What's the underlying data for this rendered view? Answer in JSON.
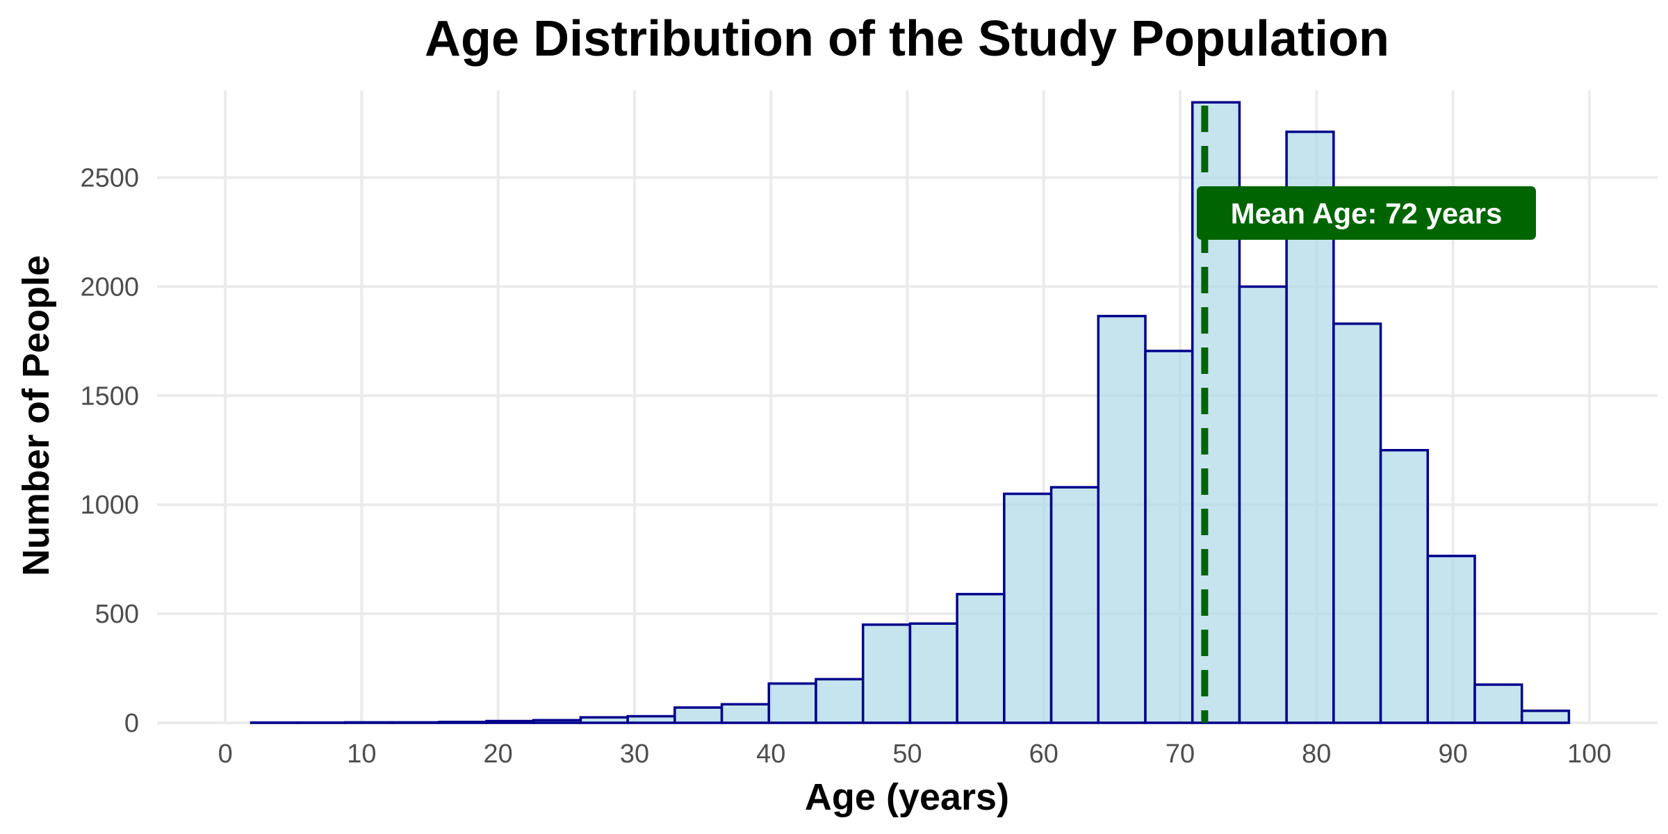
{
  "chart_data": {
    "type": "bar",
    "subtype": "histogram",
    "title": "Age Distribution of the Study Population",
    "xlabel": "Age (years)",
    "ylabel": "Number of People",
    "xlim": [
      -5,
      105
    ],
    "ylim": [
      0,
      2900
    ],
    "xticks": [
      0,
      10,
      20,
      30,
      40,
      50,
      60,
      70,
      80,
      90,
      100
    ],
    "yticks": [
      0,
      500,
      1000,
      1500,
      2000,
      2500
    ],
    "grid": true,
    "bin_edges": [
      1.9,
      5.35,
      8.8,
      12.25,
      15.7,
      19.15,
      22.6,
      26.05,
      29.5,
      32.95,
      36.4,
      39.85,
      43.3,
      46.75,
      50.2,
      53.65,
      57.1,
      60.55,
      64.0,
      67.45,
      70.9,
      74.35,
      77.8,
      81.25,
      84.7,
      88.15,
      91.6,
      95.05,
      98.5
    ],
    "values": [
      1,
      1,
      2,
      2,
      4,
      8,
      12,
      25,
      30,
      70,
      85,
      180,
      200,
      450,
      455,
      590,
      1050,
      1080,
      1865,
      1705,
      2845,
      2000,
      2710,
      1830,
      1250,
      765,
      175,
      55
    ],
    "bar_fill": "#add8e6",
    "bar_edge": "#00008b",
    "mean_line": {
      "value": 71.8,
      "color": "#006400",
      "label": "Mean Age: 72 years"
    }
  }
}
